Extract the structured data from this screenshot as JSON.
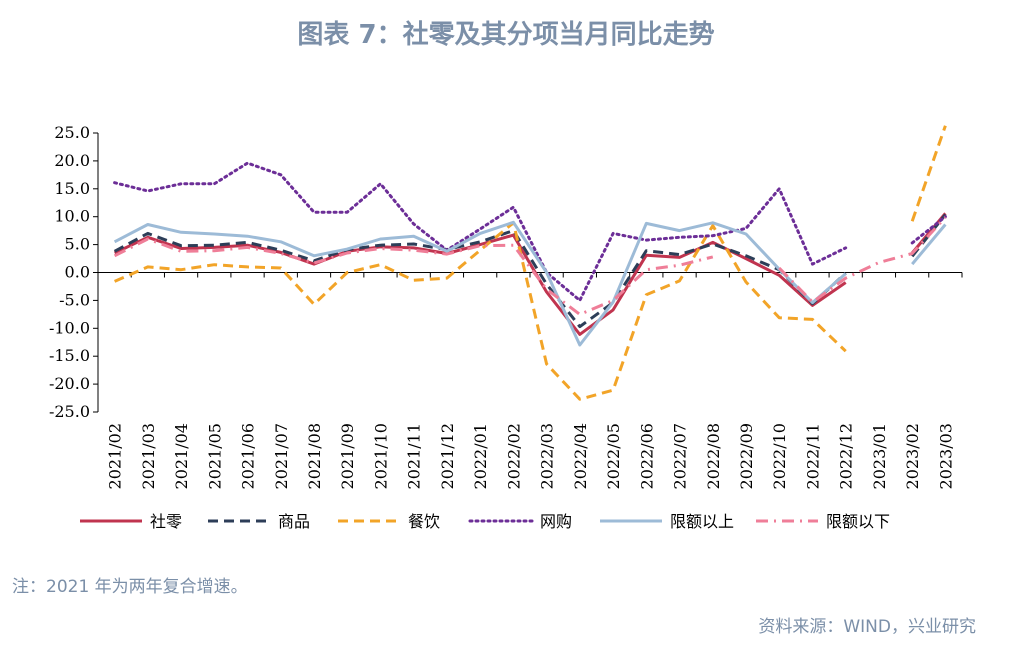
{
  "title": "图表 7：社零及其分项当月同比走势",
  "note": "注：2021 年为两年复合增速。",
  "source": "资料来源：WIND，兴业研究",
  "chart_data": {
    "type": "line",
    "categories": [
      "2021/02",
      "2021/03",
      "2021/04",
      "2021/05",
      "2021/06",
      "2021/07",
      "2021/08",
      "2021/09",
      "2021/10",
      "2021/11",
      "2021/12",
      "2022/01",
      "2022/02",
      "2022/03",
      "2022/04",
      "2022/05",
      "2022/06",
      "2022/07",
      "2022/08",
      "2022/09",
      "2022/10",
      "2022/11",
      "2022/12",
      "2023/01",
      "2023/02",
      "2023/03"
    ],
    "ylim": [
      -25,
      25
    ],
    "yticks": [
      "25.0",
      "20.0",
      "15.0",
      "10.0",
      "5.0",
      "0.0",
      "-5.0",
      "-10.0",
      "-15.0",
      "-20.0",
      "-25.0"
    ],
    "legend_position": "bottom",
    "series": [
      {
        "name": "社零",
        "color": "#c0344f",
        "dash": "solid",
        "values": [
          3.5,
          6.3,
          4.3,
          4.5,
          4.9,
          3.6,
          1.5,
          3.8,
          4.6,
          4.4,
          3.4,
          5.0,
          6.7,
          -3.5,
          -11.1,
          -6.7,
          3.1,
          2.7,
          5.4,
          2.5,
          -0.5,
          -5.9,
          -1.8,
          null,
          3.5,
          10.6
        ]
      },
      {
        "name": "商品",
        "color": "#2d3e58",
        "dash": "dashed",
        "values": [
          3.8,
          7.0,
          4.8,
          4.9,
          5.4,
          4.0,
          2.1,
          4.1,
          4.9,
          5.1,
          4.1,
          5.5,
          7.5,
          -2.1,
          -9.7,
          -5.4,
          3.9,
          3.2,
          5.1,
          3.0,
          0.5,
          -5.6,
          -0.1,
          null,
          2.9,
          10.4
        ]
      },
      {
        "name": "餐饮",
        "color": "#f2a428",
        "dash": "dashed",
        "values": [
          -1.6,
          1.0,
          0.5,
          1.4,
          1.0,
          0.8,
          -5.7,
          0.0,
          1.4,
          -1.4,
          -1.0,
          4.0,
          8.9,
          -16.4,
          -22.7,
          -21.1,
          -4.0,
          -1.5,
          8.4,
          -1.7,
          -8.1,
          -8.4,
          -14.1,
          null,
          9.2,
          26.3
        ]
      },
      {
        "name": "网购",
        "color": "#6c2e97",
        "dash": "dotted",
        "values": [
          16.1,
          14.6,
          15.9,
          15.9,
          19.6,
          17.5,
          10.8,
          10.8,
          15.9,
          8.7,
          4.0,
          7.8,
          11.7,
          0.0,
          -5.0,
          7.0,
          5.8,
          6.3,
          6.6,
          7.9,
          15.0,
          1.5,
          4.4,
          null,
          5.3,
          10.0
        ]
      },
      {
        "name": "限额以上",
        "color": "#9dbbd7",
        "dash": "solid",
        "values": [
          5.5,
          8.6,
          7.2,
          6.9,
          6.5,
          5.5,
          3.0,
          4.2,
          6.0,
          6.5,
          3.8,
          7.0,
          9.0,
          0.0,
          -13.0,
          -5.3,
          8.8,
          7.5,
          8.9,
          6.9,
          0.6,
          -5.4,
          -0.2,
          null,
          1.5,
          8.6
        ]
      },
      {
        "name": "限额以下",
        "color": "#ef7e98",
        "dash": "dashdot",
        "values": [
          3.0,
          6.0,
          3.8,
          3.9,
          4.5,
          3.4,
          1.7,
          3.5,
          4.3,
          4.0,
          3.3,
          4.8,
          4.9,
          -3.0,
          -7.5,
          -5.0,
          0.5,
          1.3,
          2.8,
          null,
          0.8,
          -5.3,
          -1.0,
          1.8,
          3.4,
          9.9
        ]
      }
    ]
  }
}
